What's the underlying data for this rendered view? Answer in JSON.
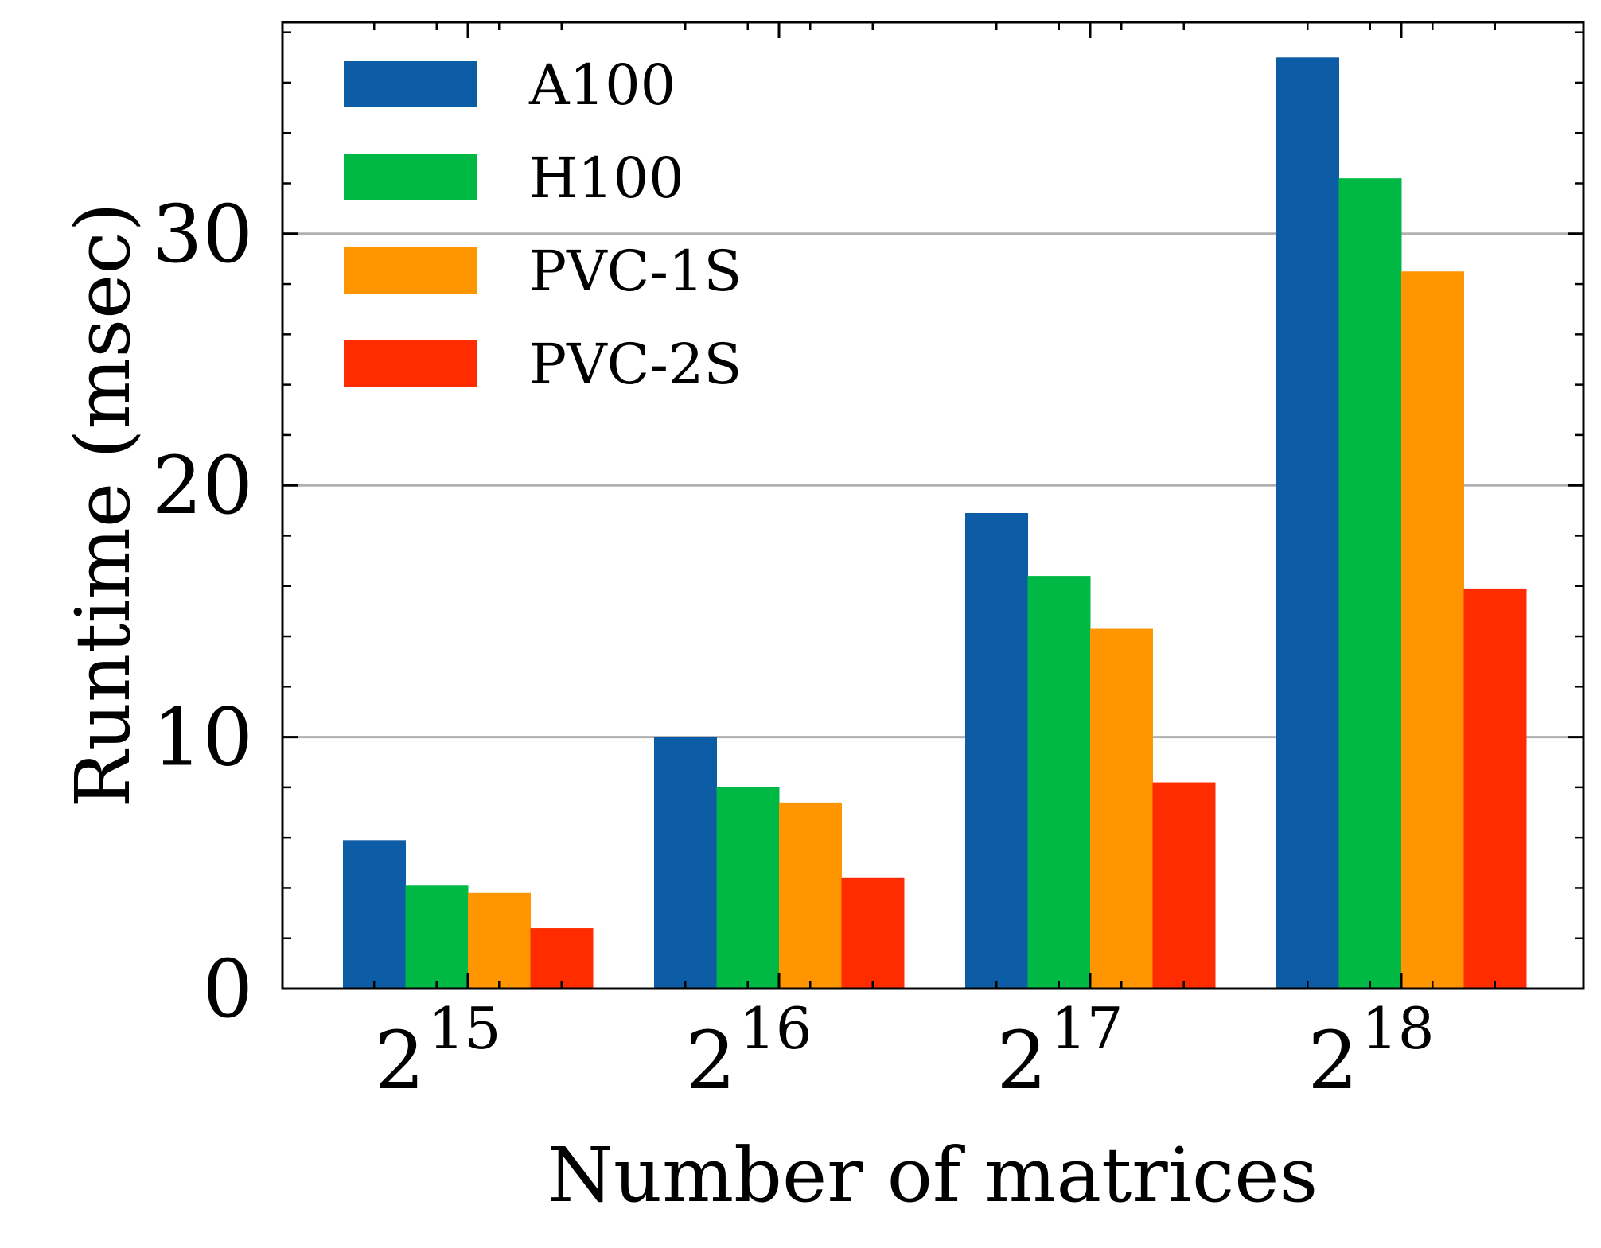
{
  "chart_data": {
    "type": "bar",
    "title": "",
    "xlabel": "Number of matrices",
    "ylabel": "Runtime (msec)",
    "categories": [
      {
        "base": "2",
        "exp": "15"
      },
      {
        "base": "2",
        "exp": "16"
      },
      {
        "base": "2",
        "exp": "17"
      },
      {
        "base": "2",
        "exp": "18"
      }
    ],
    "series": [
      {
        "name": "A100",
        "color": "#0c5da5",
        "values": [
          5.9,
          10.0,
          18.9,
          37.0
        ]
      },
      {
        "name": "H100",
        "color": "#00b945",
        "values": [
          4.1,
          8.0,
          16.4,
          32.2
        ]
      },
      {
        "name": "PVC-1S",
        "color": "#ff9500",
        "values": [
          3.8,
          7.4,
          14.3,
          28.5
        ]
      },
      {
        "name": "PVC-2S",
        "color": "#ff2c00",
        "values": [
          2.4,
          4.4,
          8.2,
          15.9
        ]
      }
    ],
    "ylim": [
      0,
      38.4
    ],
    "yticks": [
      "0",
      "10",
      "20",
      "30"
    ],
    "ytick_values": [
      0,
      10,
      20,
      30
    ],
    "grid": "horizontal, major ticks only",
    "legend_position": "top-left"
  }
}
